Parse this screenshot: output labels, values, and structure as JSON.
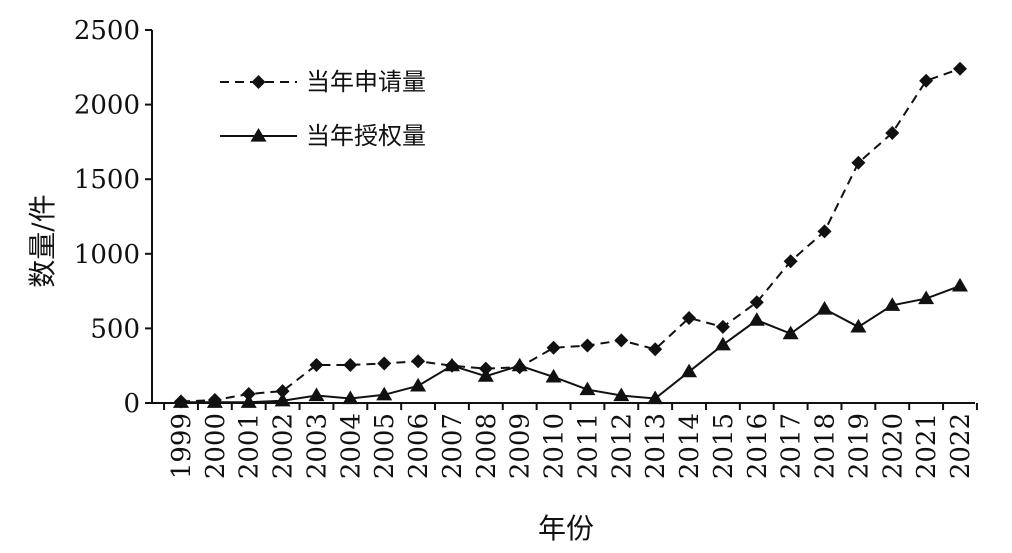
{
  "chart_data": {
    "type": "line",
    "title": "",
    "xlabel": "年份",
    "ylabel": "数量/件",
    "ylim": [
      0,
      2500
    ],
    "yticks": [
      0,
      500,
      1000,
      1500,
      2000,
      2500
    ],
    "grid": false,
    "legend_position": "top-left",
    "categories": [
      "1999",
      "2000",
      "2001",
      "2002",
      "2003",
      "2004",
      "2005",
      "2006",
      "2007",
      "2008",
      "2009",
      "2010",
      "2011",
      "2012",
      "2013",
      "2014",
      "2015",
      "2016",
      "2017",
      "2018",
      "2019",
      "2020",
      "2021",
      "2022"
    ],
    "series": [
      {
        "name": "当年申请量",
        "line_style": "dashed",
        "marker": "diamond",
        "color": "#111111",
        "values": [
          10,
          20,
          60,
          80,
          255,
          255,
          265,
          280,
          250,
          230,
          240,
          370,
          385,
          420,
          360,
          570,
          510,
          675,
          950,
          1150,
          1610,
          1810,
          2160,
          2240
        ]
      },
      {
        "name": "当年授权量",
        "line_style": "solid",
        "marker": "triangle",
        "color": "#111111",
        "values": [
          5,
          5,
          5,
          15,
          50,
          30,
          55,
          115,
          250,
          180,
          250,
          175,
          90,
          50,
          30,
          210,
          390,
          555,
          465,
          630,
          510,
          655,
          700,
          785
        ]
      }
    ]
  }
}
